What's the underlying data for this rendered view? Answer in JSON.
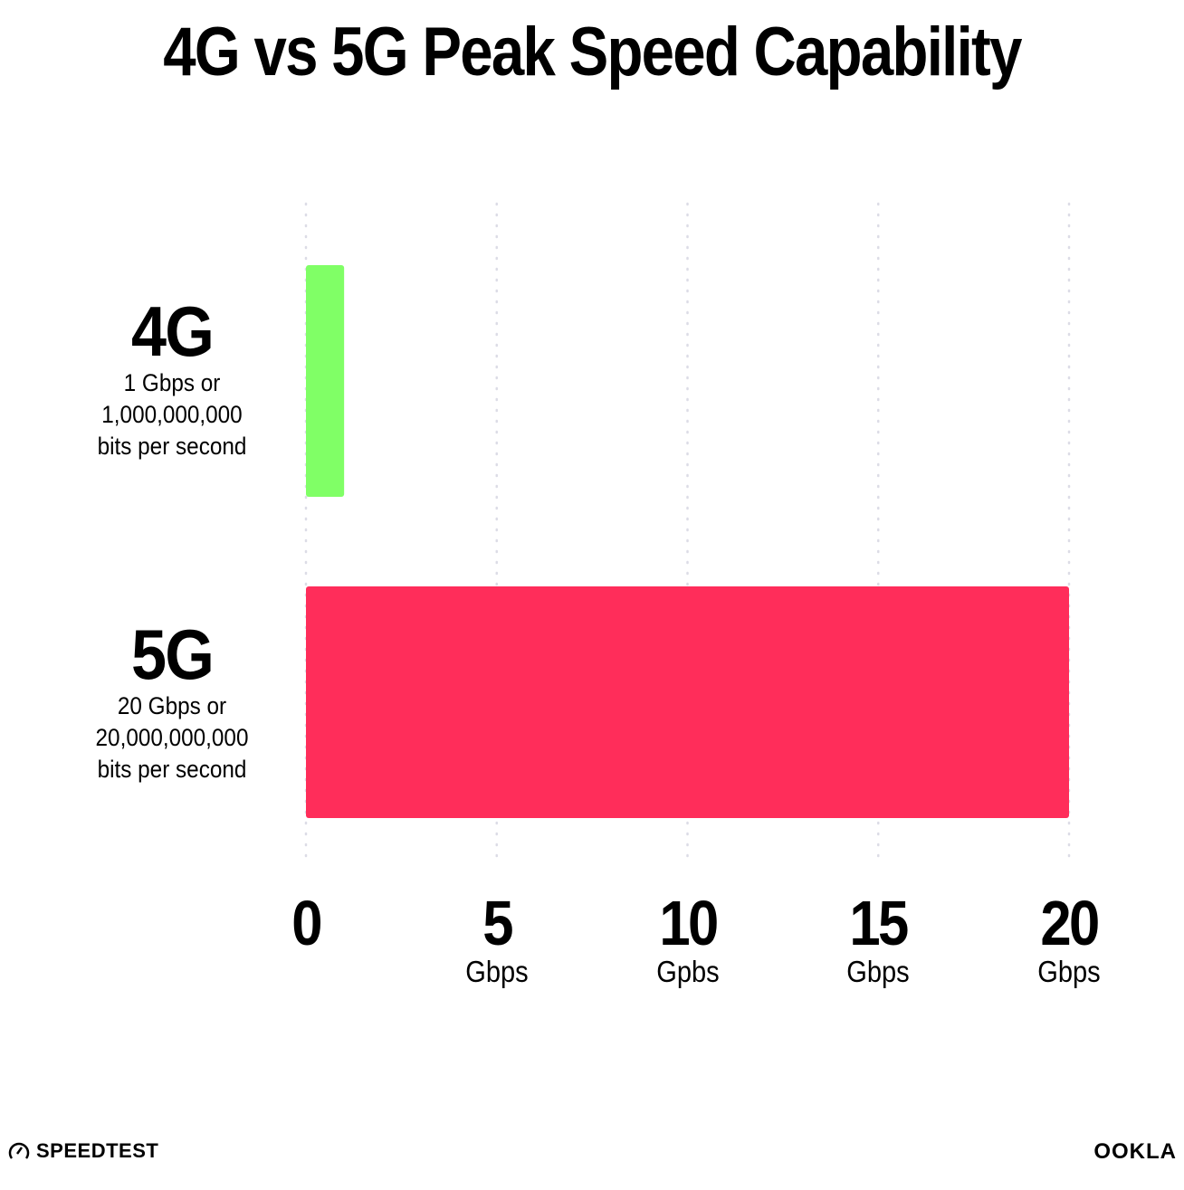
{
  "chart_data": {
    "type": "bar",
    "orientation": "horizontal",
    "title": "4G vs 5G Peak Speed Capability",
    "categories": [
      {
        "label": "4G",
        "description": [
          "1 Gbps or",
          "1,000,000,000",
          "bits per second"
        ]
      },
      {
        "label": "5G",
        "description": [
          "20 Gbps or",
          "20,000,000,000",
          "bits per second"
        ]
      }
    ],
    "values": [
      1,
      20
    ],
    "colors": [
      "#80ff66",
      "#ff2d5a"
    ],
    "xlim": [
      0,
      20
    ],
    "grid": true,
    "x_ticks": [
      {
        "value": 0,
        "label": "0",
        "unit": ""
      },
      {
        "value": 5,
        "label": "5",
        "unit": "Gbps"
      },
      {
        "value": 10,
        "label": "10",
        "unit": "Gpbs"
      },
      {
        "value": 15,
        "label": "15",
        "unit": "Gbps"
      },
      {
        "value": 20,
        "label": "20",
        "unit": "Gbps"
      }
    ]
  },
  "branding": {
    "left": "SPEEDTEST",
    "right": "OOKLA"
  }
}
